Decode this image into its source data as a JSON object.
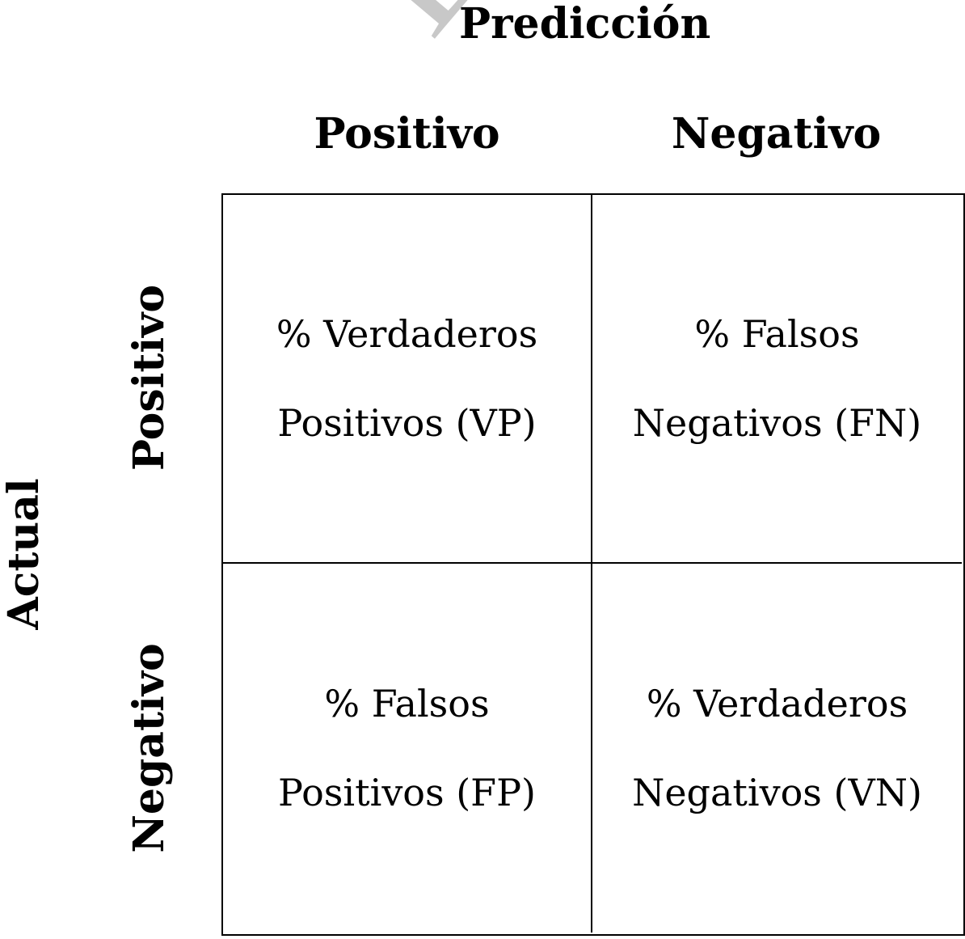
{
  "watermark": "DRAFT",
  "prediction_title": "Predicción",
  "actual_title": "Actual",
  "columns": [
    "Positivo",
    "Negativo"
  ],
  "rows": [
    "Positivo",
    "Negativo"
  ],
  "cells": {
    "vp": {
      "line1": "% Verdaderos",
      "line2": "Positivos (VP)"
    },
    "fn": {
      "line1": "% Falsos",
      "line2": "Negativos (FN)"
    },
    "fp": {
      "line1": "% Falsos",
      "line2": "Positivos (FP)"
    },
    "vn": {
      "line1": "% Verdaderos",
      "line2": "Negativos (VN)"
    }
  },
  "colors": {
    "line": "#000000",
    "text": "#000000",
    "watermark": "#c8c8c8"
  }
}
